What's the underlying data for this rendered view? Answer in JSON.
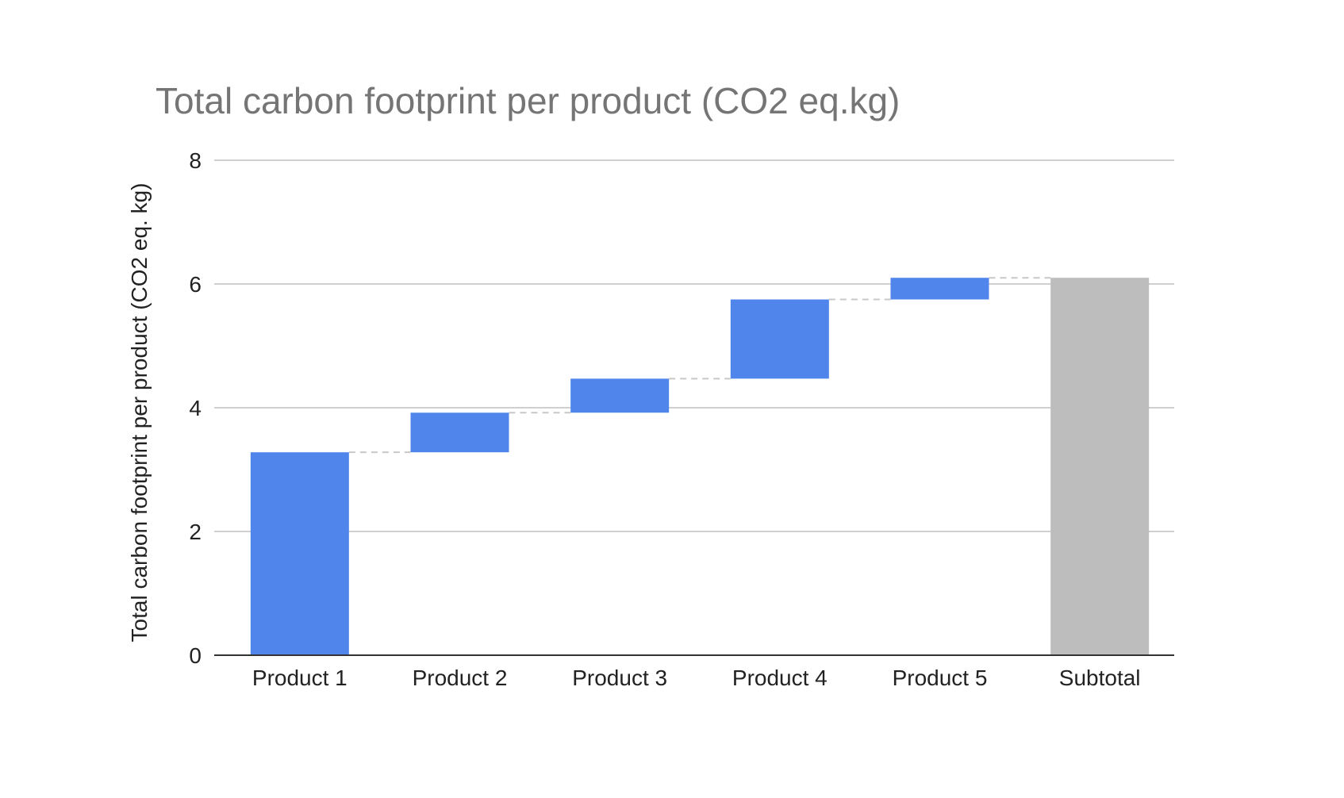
{
  "chart_data": {
    "type": "bar",
    "subtype": "waterfall",
    "title": "Total carbon footprint per product (CO2 eq.kg)",
    "xlabel": "",
    "ylabel": "Total carbon footprint per product (CO2 eq. kg)",
    "ylim": [
      0,
      8
    ],
    "yticks": [
      "0",
      "2",
      "4",
      "6",
      "8"
    ],
    "categories": [
      "Product 1",
      "Product 2",
      "Product 3",
      "Product 4",
      "Product 5",
      "Subtotal"
    ],
    "values": [
      3.28,
      0.64,
      0.55,
      1.28,
      0.35,
      6.1
    ],
    "bar_ranges": [
      [
        0,
        3.28
      ],
      [
        3.28,
        3.92
      ],
      [
        3.92,
        4.47
      ],
      [
        4.47,
        5.75
      ],
      [
        5.75,
        6.1
      ],
      [
        0,
        6.1
      ]
    ],
    "is_total": [
      false,
      false,
      false,
      false,
      false,
      true
    ],
    "colors": {
      "increase": "#5086ec",
      "total": "#bdbdbd",
      "grid": "#d0d0d0",
      "axis": "#333333",
      "connector": "#c8c8c8",
      "title": "#757575",
      "text": "#222222"
    },
    "grid": true,
    "legend": "none"
  }
}
